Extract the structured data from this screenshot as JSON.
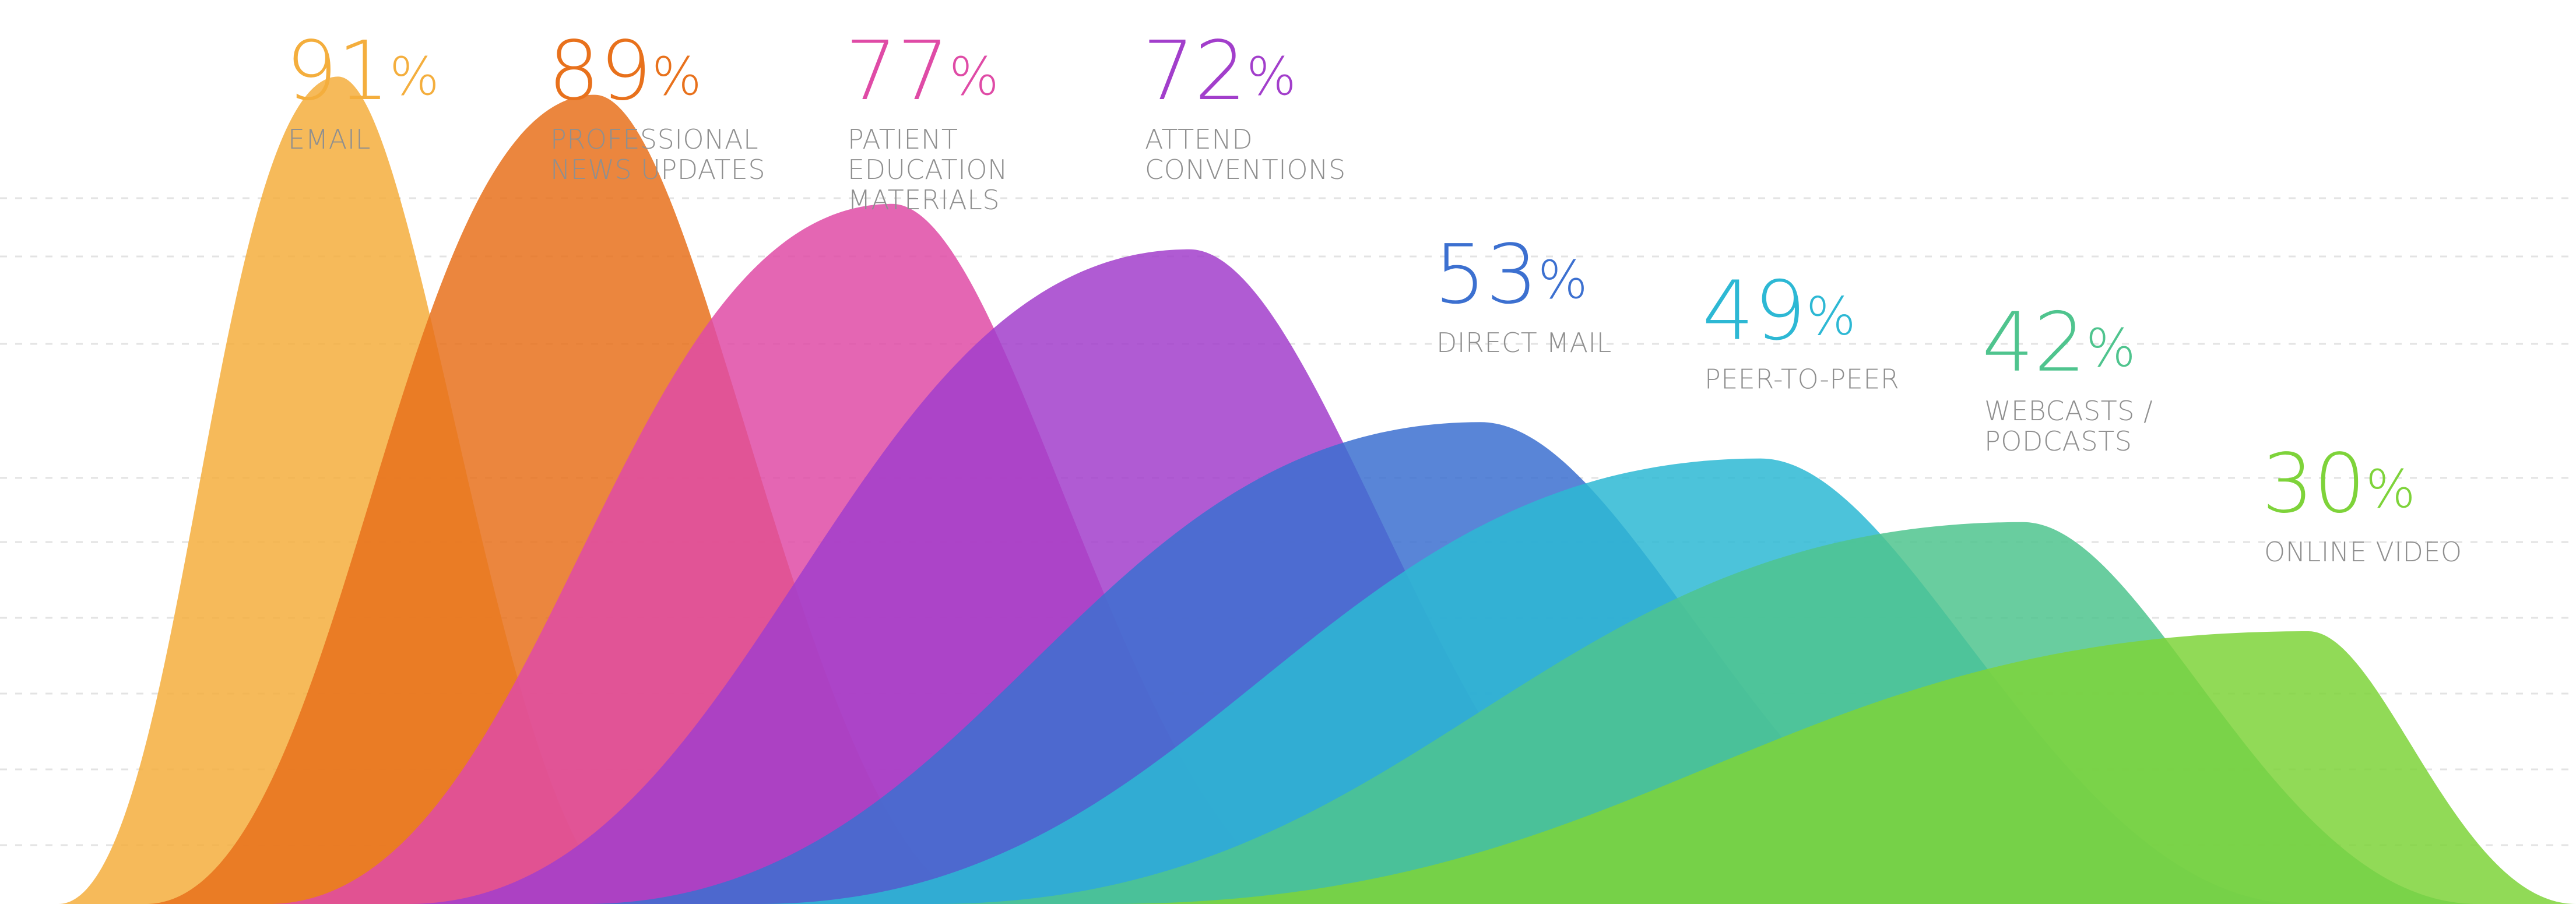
{
  "chart_data": {
    "type": "area",
    "title": "",
    "xlabel": "",
    "ylabel": "",
    "grid": true,
    "legend": "none",
    "unit": "%",
    "categories": [
      "EMAIL",
      "PROFESSIONAL NEWS UPDATES",
      "PATIENT EDUCATION MATERIALS",
      "ATTEND CONVENTIONS",
      "DIRECT MAIL",
      "PEER-TO-PEER",
      "WEBCASTS / PODCASTS",
      "ONLINE VIDEO"
    ],
    "series": [
      {
        "label_lines": [
          "EMAIL"
        ],
        "value": 91,
        "color": "#F4AE3D"
      },
      {
        "label_lines": [
          "PROFESSIONAL",
          "NEWS UPDATES"
        ],
        "value": 89,
        "color": "#E8711C"
      },
      {
        "label_lines": [
          "PATIENT",
          "EDUCATION",
          "MATERIALS"
        ],
        "value": 77,
        "color": "#DF4BA6"
      },
      {
        "label_lines": [
          "ATTEND",
          "CONVENTIONS"
        ],
        "value": 72,
        "color": "#A23ECB"
      },
      {
        "label_lines": [
          "DIRECT MAIL"
        ],
        "value": 53,
        "color": "#3C70D0"
      },
      {
        "label_lines": [
          "PEER-TO-PEER"
        ],
        "value": 49,
        "color": "#2DB8D4"
      },
      {
        "label_lines": [
          "WEBCASTS /",
          "PODCASTS"
        ],
        "value": 42,
        "color": "#4FC48E"
      },
      {
        "label_lines": [
          "ONLINE VIDEO"
        ],
        "value": 30,
        "color": "#7ED33A"
      }
    ]
  }
}
